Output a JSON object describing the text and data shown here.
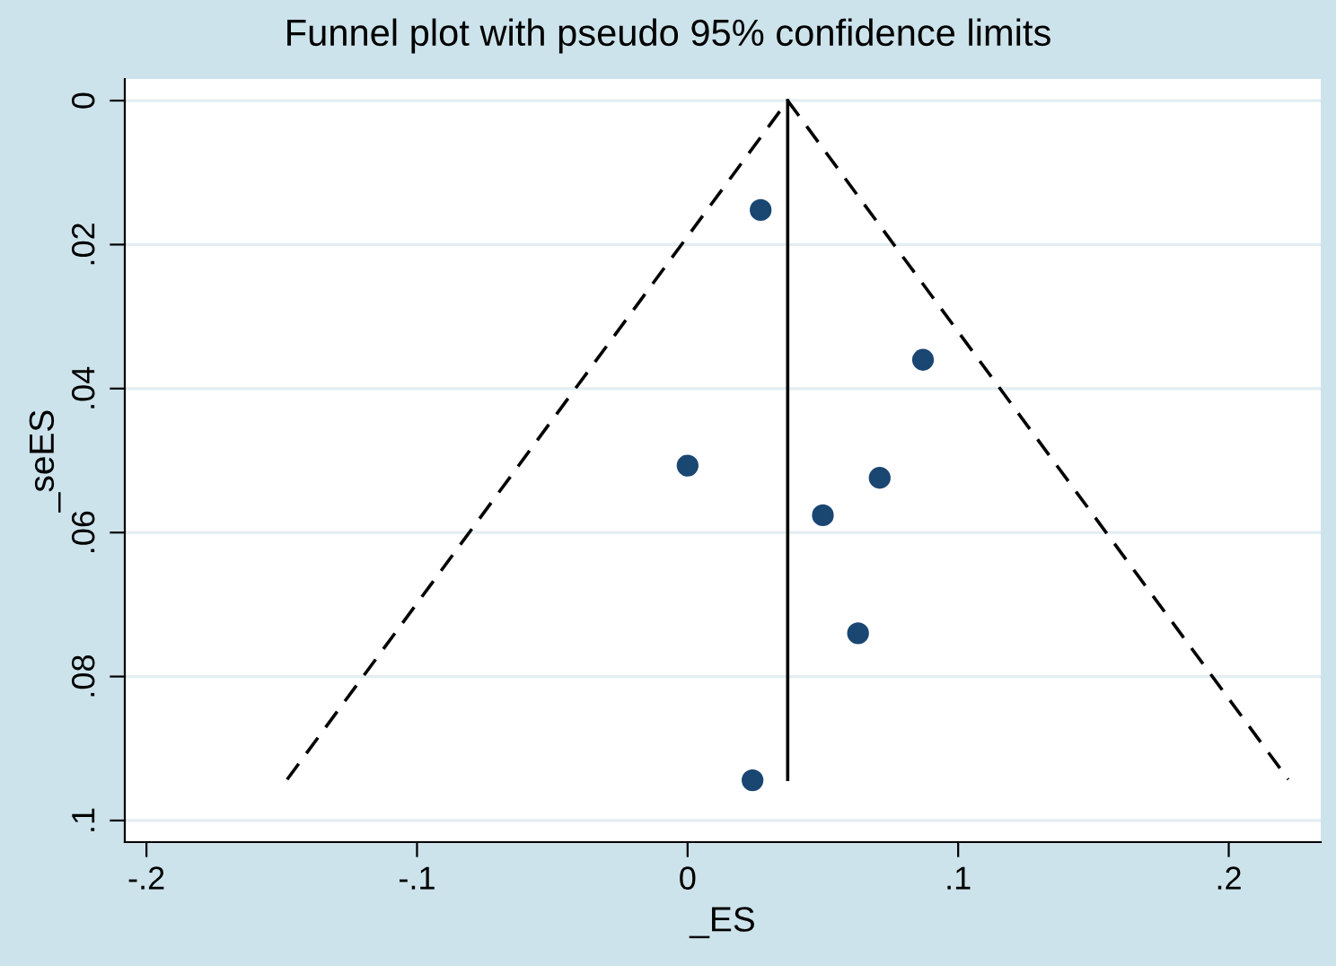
{
  "chart_data": {
    "type": "scatter",
    "title": "Funnel plot with pseudo 95% confidence limits",
    "xlabel": "_ES",
    "ylabel": "_seES",
    "series": [
      {
        "color": "#1a4672",
        "marker": "circle",
        "x": [
          0.027,
          0.087,
          0.0,
          0.071,
          0.05,
          0.063,
          0.024
        ],
        "values": [
          0.0152,
          0.036,
          0.0507,
          0.0524,
          0.0576,
          0.074,
          0.0944
        ]
      },
      {
        "type": "line",
        "color": "#000000",
        "marker": "none",
        "line_style": "dashed",
        "x": [
          -0.148,
          0.037,
          0.222
        ],
        "values": [
          0.0943,
          0,
          0.0943
        ]
      },
      {
        "type": "line",
        "color": "#000000",
        "marker": "none",
        "line_style": "solid",
        "x": [
          0.037,
          0.037
        ],
        "values": [
          0,
          0.0943
        ]
      }
    ],
    "xlim": [
      -0.208,
      0.234
    ],
    "ylim": [
      0.103,
      -0.003
    ],
    "xticks": [
      {
        "value": -0.2,
        "label": "-.2"
      },
      {
        "value": -0.1,
        "label": "-.1"
      },
      0,
      {
        "value": 0.1,
        "label": ".1"
      },
      {
        "value": 0.2,
        "label": ".2"
      }
    ],
    "yticks": [
      0,
      {
        "value": 0.02,
        "label": ".02"
      },
      {
        "value": 0.04,
        "label": ".04"
      },
      {
        "value": 0.06,
        "label": ".06"
      },
      {
        "value": 0.08,
        "label": ".08"
      },
      {
        "value": 0.1,
        "label": ".1"
      }
    ],
    "grid": "y"
  }
}
